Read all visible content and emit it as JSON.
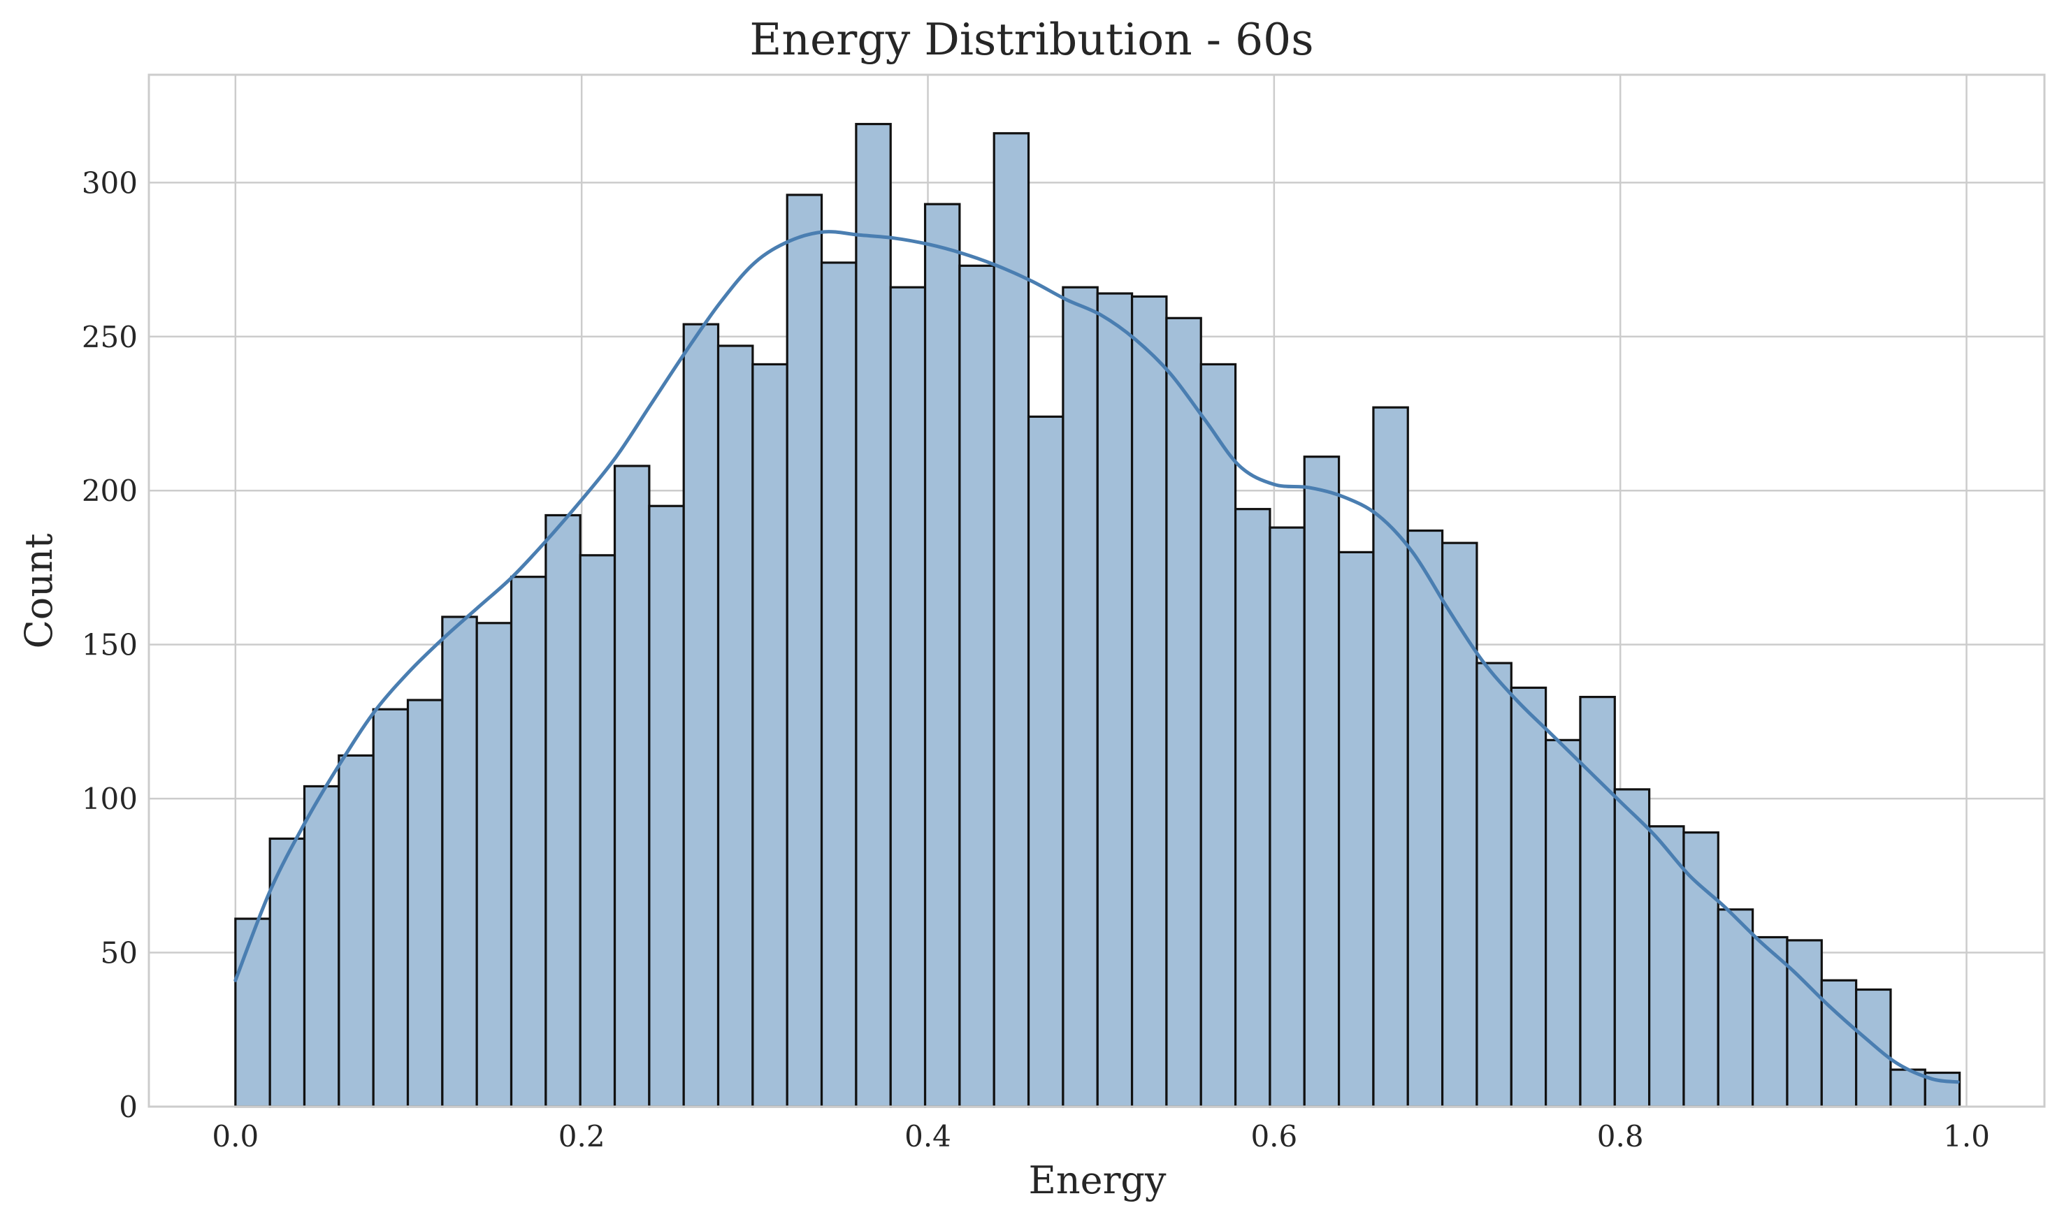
{
  "chart_data": {
    "type": "bar",
    "title": "Energy Distribution - 60s",
    "xlabel": "Energy",
    "ylabel": "Count",
    "xlim": [
      -0.05,
      1.045
    ],
    "ylim": [
      0,
      335
    ],
    "x_ticks": [
      0.0,
      0.2,
      0.4,
      0.6,
      0.8,
      1.0
    ],
    "x_tick_labels": [
      "0.0",
      "0.2",
      "0.4",
      "0.6",
      "0.8",
      "1.0"
    ],
    "y_ticks": [
      0,
      50,
      100,
      150,
      200,
      250,
      300
    ],
    "y_tick_labels": [
      "0",
      "50",
      "100",
      "150",
      "200",
      "250",
      "300"
    ],
    "grid": true,
    "bin_start": 0.0,
    "bin_width": 0.01992,
    "values": [
      61,
      87,
      104,
      114,
      129,
      132,
      159,
      157,
      172,
      192,
      179,
      208,
      195,
      254,
      247,
      241,
      296,
      274,
      319,
      266,
      293,
      273,
      316,
      224,
      266,
      264,
      263,
      256,
      241,
      194,
      188,
      211,
      180,
      227,
      187,
      183,
      144,
      136,
      119,
      133,
      103,
      91,
      89,
      64,
      55,
      54,
      41,
      38,
      12,
      11
    ],
    "kde_x": [
      0.0,
      0.02,
      0.04,
      0.06,
      0.08,
      0.1,
      0.12,
      0.14,
      0.16,
      0.18,
      0.2,
      0.22,
      0.24,
      0.26,
      0.28,
      0.3,
      0.32,
      0.34,
      0.36,
      0.38,
      0.4,
      0.42,
      0.44,
      0.46,
      0.48,
      0.5,
      0.52,
      0.54,
      0.56,
      0.58,
      0.6,
      0.62,
      0.64,
      0.66,
      0.68,
      0.7,
      0.72,
      0.74,
      0.76,
      0.78,
      0.8,
      0.82,
      0.84,
      0.86,
      0.88,
      0.9,
      0.92,
      0.94,
      0.96,
      0.98,
      0.995
    ],
    "kde_y": [
      41,
      70,
      92,
      111,
      128,
      141,
      152,
      162,
      172,
      184,
      197,
      211,
      228,
      245,
      261,
      274,
      281,
      284,
      283,
      282,
      280,
      277,
      273,
      268,
      262,
      257,
      249,
      238,
      223,
      208,
      202,
      201,
      198,
      192,
      180,
      162,
      145,
      132,
      121,
      110,
      99,
      88,
      75,
      65,
      54,
      44,
      33,
      23,
      14,
      9,
      8
    ],
    "colors": {
      "bar_fill": "#a3bfd9",
      "bar_edge": "#111111",
      "kde_line": "#4a7eb1",
      "grid": "#cccccc",
      "axes_frame": "#cccccc",
      "text": "#262626"
    }
  }
}
